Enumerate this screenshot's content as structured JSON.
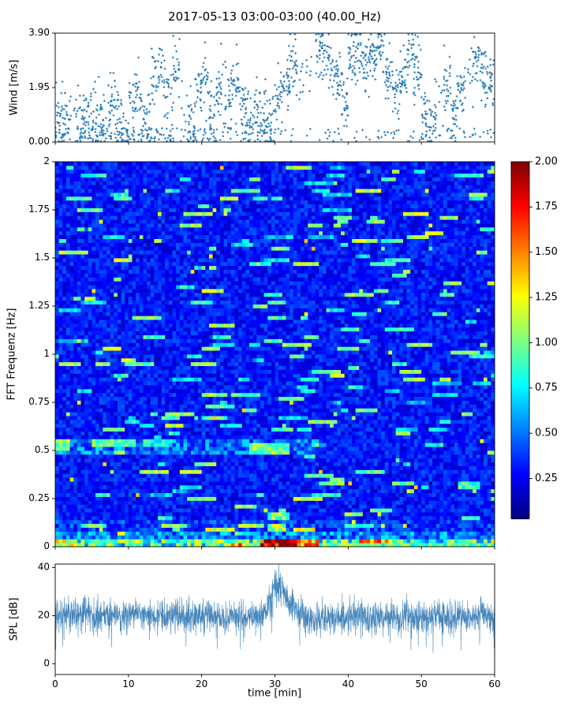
{
  "figure": {
    "title": "2017-05-13 03:00-03:00 (40.00_Hz)",
    "background": "#ffffff",
    "seed": 20170513
  },
  "chart_data": [
    {
      "id": "wind",
      "type": "scatter",
      "ylabel": "Wind [m/s]",
      "ylim": [
        0,
        3.9
      ],
      "yticks": [
        0.0,
        1.95,
        3.9
      ],
      "ytick_labels": [
        "0.00",
        "1.95",
        "3.90"
      ],
      "xlim": [
        0,
        60
      ],
      "xticks": [
        0,
        10,
        20,
        30,
        40,
        50,
        60
      ],
      "marker_color": "#1f77b4",
      "points_per_minute": 30,
      "spread": 0.55,
      "minute_means": [
        0.9,
        1.1,
        0.7,
        0.9,
        1.2,
        1.0,
        0.8,
        1.3,
        1.0,
        0.4,
        1.4,
        1.7,
        1.0,
        2.4,
        2.6,
        1.6,
        2.4,
        1.0,
        0.6,
        1.8,
        2.3,
        1.2,
        2.0,
        1.5,
        2.1,
        1.4,
        0.8,
        1.1,
        0.9,
        0.7,
        1.6,
        2.3,
        2.8,
        2.2,
        2.7,
        3.1,
        3.4,
        2.9,
        2.1,
        1.4,
        3.0,
        3.2,
        2.6,
        3.1,
        3.3,
        2.4,
        1.7,
        2.4,
        3.2,
        2.7,
        1.1,
        0.7,
        1.4,
        2.0,
        0.9,
        1.8,
        2.7,
        3.1,
        2.4,
        2.1,
        2.0
      ]
    },
    {
      "id": "spectrogram",
      "type": "heatmap",
      "ylabel": "FFT Frequenz [Hz]",
      "ylim": [
        0,
        2
      ],
      "yticks": [
        0,
        0.25,
        0.5,
        0.75,
        1,
        1.25,
        1.5,
        1.75,
        2
      ],
      "ytick_labels": [
        "0",
        "0.25",
        "0.5",
        "0.75",
        "1",
        "1.25",
        "1.5",
        "1.75",
        "2"
      ],
      "xlim": [
        0,
        60
      ],
      "xticks": [
        0,
        10,
        20,
        30,
        40,
        50,
        60
      ],
      "colormap": "jet",
      "clim": [
        0.03,
        2.0
      ],
      "nx": 120,
      "ny": 100,
      "base_level": 0.3,
      "row_bands": [
        {
          "f": [
            0.0,
            0.04
          ],
          "level": 0.85
        },
        {
          "f": [
            0.04,
            0.09
          ],
          "level": 0.5
        },
        {
          "f": [
            0.48,
            0.57
          ],
          "level": 0.48,
          "t": [
            0,
            36
          ]
        },
        {
          "f": [
            0.09,
            0.14
          ],
          "level": 0.38
        }
      ],
      "features": [
        {
          "t": [
            28,
            33.5
          ],
          "f": [
            0.0,
            0.05
          ],
          "level": 1.9
        },
        {
          "t": [
            33.5,
            36
          ],
          "f": [
            0.0,
            0.04
          ],
          "level": 1.45
        },
        {
          "t": [
            0,
            3
          ],
          "f": [
            0.0,
            0.05
          ],
          "level": 1.25
        },
        {
          "t": [
            36,
            60
          ],
          "f": [
            0.0,
            0.03
          ],
          "level": 0.95
        },
        {
          "t": [
            0,
            2.2
          ],
          "f": [
            0.5,
            0.56
          ],
          "level": 1.05
        },
        {
          "t": [
            5,
            11
          ],
          "f": [
            0.52,
            0.56
          ],
          "level": 0.95
        },
        {
          "t": [
            26.5,
            32
          ],
          "f": [
            0.49,
            0.54
          ],
          "level": 1.0
        },
        {
          "t": [
            12,
            16
          ],
          "f": [
            0.53,
            0.56
          ],
          "level": 0.8
        },
        {
          "t": [
            29,
            31.5
          ],
          "f": [
            0.08,
            0.12
          ],
          "level": 1.0
        },
        {
          "t": [
            29,
            32
          ],
          "f": [
            0.15,
            0.18
          ],
          "level": 0.95
        },
        {
          "t": [
            55,
            58
          ],
          "f": [
            0.3,
            0.34
          ],
          "level": 0.85
        }
      ],
      "streak_probability": 0.02,
      "streak_boost": [
        0.35,
        0.85
      ]
    },
    {
      "id": "spl",
      "type": "line",
      "ylabel": "SPL [dB]",
      "xlabel": "time [min]",
      "ylim": [
        -4.5,
        41.5
      ],
      "yticks": [
        0,
        20,
        40
      ],
      "ytick_labels": [
        "0",
        "20",
        "40"
      ],
      "xlim": [
        0,
        60
      ],
      "xticks": [
        0,
        10,
        20,
        30,
        40,
        50,
        60
      ],
      "xtick_labels": [
        "0",
        "10",
        "20",
        "30",
        "40",
        "50",
        "60"
      ],
      "line_color": "#3c80b7",
      "samples": 2400,
      "noise_std": 3.2,
      "minute_means": [
        20,
        21,
        20,
        20,
        21,
        20,
        20,
        20,
        20,
        20,
        20,
        21,
        20,
        20,
        20,
        20,
        20,
        20,
        19,
        20,
        20,
        20,
        20,
        19,
        20,
        20,
        19,
        20,
        19,
        23,
        34,
        31,
        26,
        22,
        20,
        19,
        19,
        20,
        19,
        19,
        19,
        20,
        19,
        19,
        20,
        19,
        19,
        19,
        20,
        19,
        20,
        19,
        20,
        20,
        19,
        20,
        19,
        19,
        20,
        19,
        19
      ]
    }
  ],
  "colorbar": {
    "colormap": "jet",
    "clim": [
      0.03,
      2.0
    ],
    "ticks": [
      0.25,
      0.5,
      0.75,
      1.0,
      1.25,
      1.5,
      1.75,
      2.0
    ],
    "tick_labels": [
      "0.25",
      "0.50",
      "0.75",
      "1.00",
      "1.25",
      "1.50",
      "1.75",
      "2.00"
    ]
  }
}
